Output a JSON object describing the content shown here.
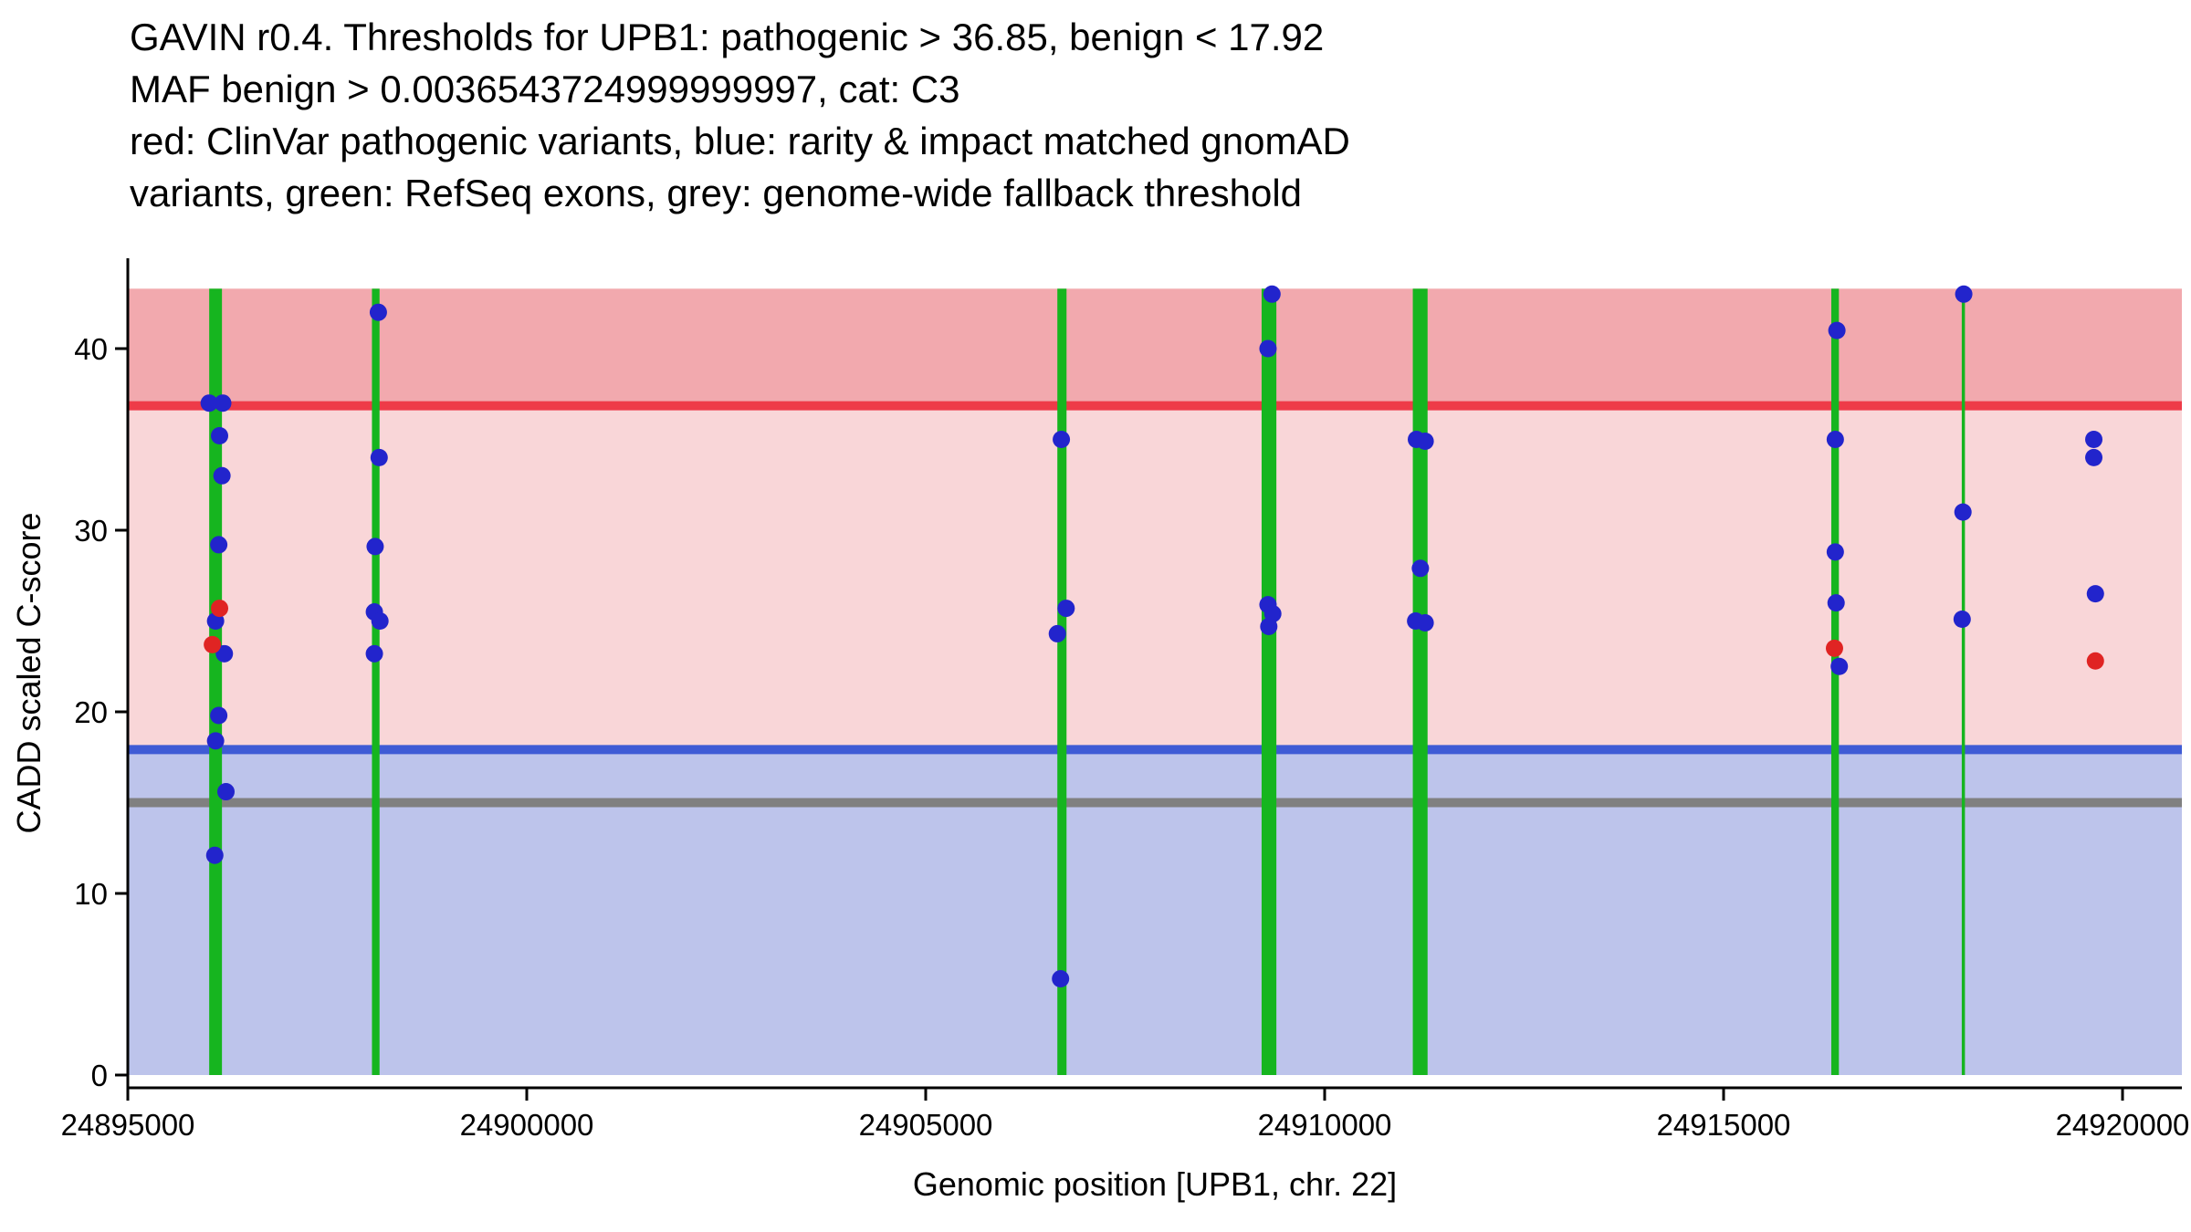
{
  "title": {
    "lines": [
      "GAVIN r0.4. Thresholds for UPB1: pathogenic > 36.85, benign < 17.92",
      "MAF benign > 0.0036543724999999997, cat: C3",
      "red: ClinVar pathogenic variants, blue: rarity & impact matched gnomAD",
      "variants, green: RefSeq exons, grey: genome-wide fallback threshold"
    ]
  },
  "chart_data": {
    "type": "scatter",
    "title": "GAVIN r0.4. Thresholds for UPB1: pathogenic > 36.85, benign < 17.92 MAF benign > 0.0036543724999999997, cat: C3",
    "xlabel": "Genomic position [UPB1, chr. 22]",
    "ylabel": "CADD scaled C-score",
    "xlim": [
      24895000,
      24920800
    ],
    "ylim": [
      0,
      43.3
    ],
    "grid": false,
    "legend": "none",
    "x_ticks": [
      {
        "value": 24895000,
        "label": "24895000"
      },
      {
        "value": 24900000,
        "label": "24900000"
      },
      {
        "value": 24905000,
        "label": "24905000"
      },
      {
        "value": 24910000,
        "label": "24910000"
      },
      {
        "value": 24915000,
        "label": "24915000"
      },
      {
        "value": 24920000,
        "label": "24920000"
      }
    ],
    "y_ticks": [
      {
        "value": 0,
        "label": "0"
      },
      {
        "value": 10,
        "label": "10"
      },
      {
        "value": 20,
        "label": "20"
      },
      {
        "value": 30,
        "label": "30"
      },
      {
        "value": 40,
        "label": "40"
      }
    ],
    "regions": [
      {
        "name": "pathogenic-zone",
        "from": 36.85,
        "to": 43.3,
        "color": "#f2a9ae"
      },
      {
        "name": "intermediate-zone",
        "from": 17.92,
        "to": 36.85,
        "color": "#f9d6d8"
      },
      {
        "name": "benign-zone",
        "from": 0,
        "to": 17.92,
        "color": "#bdc4eb"
      }
    ],
    "thresholds": [
      {
        "name": "pathogenic-threshold",
        "value": 36.85,
        "color": "#ee3b48",
        "label": "pathogenic > 36.85"
      },
      {
        "name": "benign-threshold",
        "value": 17.92,
        "color": "#3f5bd5",
        "label": "benign < 17.92"
      },
      {
        "name": "genome-wide-fallback-threshold",
        "value": 15,
        "color": "#808080",
        "label": "genome-wide fallback threshold"
      }
    ],
    "exons": [
      {
        "start": 24896020,
        "end": 24896180
      },
      {
        "start": 24898060,
        "end": 24898155
      },
      {
        "start": 24906650,
        "end": 24906765
      },
      {
        "start": 24909210,
        "end": 24909395
      },
      {
        "start": 24911105,
        "end": 24911290
      },
      {
        "start": 24916350,
        "end": 24916445
      },
      {
        "start": 24917985,
        "end": 24918025
      }
    ],
    "series": [
      {
        "name": "rarity & impact matched gnomAD variants",
        "color": "#2224cc",
        "points": [
          [
            24896020,
            37.0
          ],
          [
            24896190,
            37.0
          ],
          [
            24896150,
            35.2
          ],
          [
            24896180,
            33.0
          ],
          [
            24896140,
            29.2
          ],
          [
            24896100,
            25.0
          ],
          [
            24896210,
            23.2
          ],
          [
            24896140,
            19.8
          ],
          [
            24896100,
            18.4
          ],
          [
            24896230,
            15.6
          ],
          [
            24896090,
            12.1
          ],
          [
            24898140,
            42.0
          ],
          [
            24898150,
            34.0
          ],
          [
            24898100,
            29.1
          ],
          [
            24898090,
            25.5
          ],
          [
            24898160,
            25.0
          ],
          [
            24898090,
            23.2
          ],
          [
            24906700,
            35.0
          ],
          [
            24906760,
            25.7
          ],
          [
            24906650,
            24.3
          ],
          [
            24906690,
            5.3
          ],
          [
            24909340,
            43.0
          ],
          [
            24909290,
            40.0
          ],
          [
            24909290,
            25.9
          ],
          [
            24909350,
            25.4
          ],
          [
            24909300,
            24.7
          ],
          [
            24911150,
            35.0
          ],
          [
            24911260,
            34.9
          ],
          [
            24911200,
            27.9
          ],
          [
            24911140,
            25.0
          ],
          [
            24911260,
            24.9
          ],
          [
            24916420,
            41.0
          ],
          [
            24916400,
            35.0
          ],
          [
            24916400,
            28.8
          ],
          [
            24916410,
            26.0
          ],
          [
            24916450,
            22.5
          ],
          [
            24918010,
            43.0
          ],
          [
            24918000,
            31.0
          ],
          [
            24917990,
            25.1
          ],
          [
            24919640,
            35.0
          ],
          [
            24919640,
            34.0
          ],
          [
            24919660,
            26.5
          ]
        ]
      },
      {
        "name": "ClinVar pathogenic variants",
        "color": "#e02423",
        "points": [
          [
            24896150,
            25.7
          ],
          [
            24896060,
            23.7
          ],
          [
            24916390,
            23.5
          ],
          [
            24919660,
            22.8
          ]
        ]
      }
    ],
    "colors": {
      "exon": "#16b51f",
      "axis": "#000000"
    }
  }
}
